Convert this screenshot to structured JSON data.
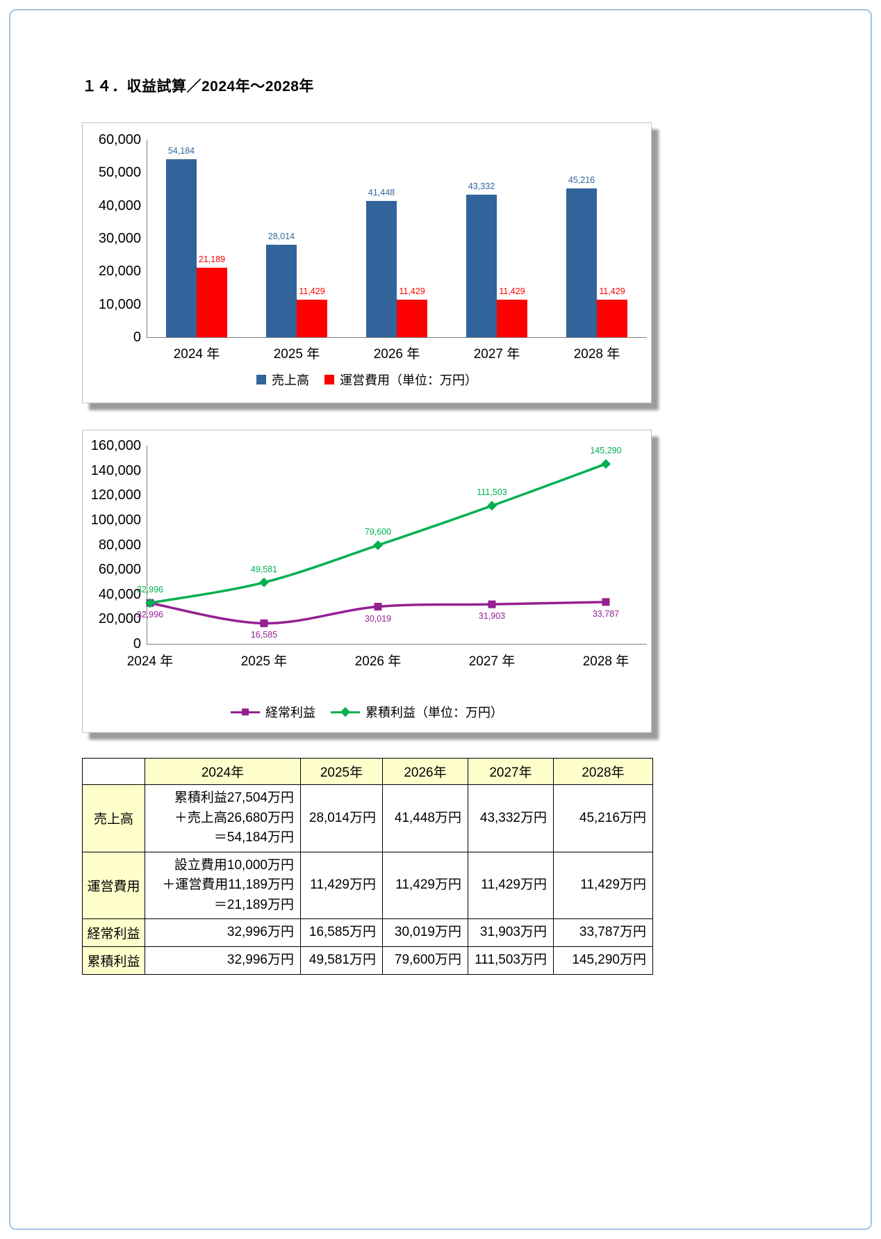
{
  "page": {
    "title": "１４．収益試算／2024年～2028年"
  },
  "colors": {
    "sales_bar": "#31649B",
    "expense_bar": "#FF0000",
    "ordinary_profit_line": "#942092",
    "cumulative_profit_line": "#00B050",
    "table_header_bg": "#FFFFCC",
    "page_border": "#A7C4DD"
  },
  "chart_data": [
    {
      "type": "bar",
      "categories": [
        "2024 年",
        "2025 年",
        "2026 年",
        "2027 年",
        "2028 年"
      ],
      "series": [
        {
          "name": "売上高",
          "color": "#31649B",
          "values": [
            54184,
            28014,
            41448,
            43332,
            45216
          ]
        },
        {
          "name": "運営費用（単位：万円）",
          "color": "#FF0000",
          "values": [
            21189,
            11429,
            11429,
            11429,
            11429
          ]
        }
      ],
      "ylim": [
        0,
        60000
      ],
      "ytick_step": 10000,
      "grid": false,
      "legend_position": "bottom"
    },
    {
      "type": "line",
      "categories": [
        "2024 年",
        "2025 年",
        "2026 年",
        "2027 年",
        "2028 年"
      ],
      "series": [
        {
          "name": "経常利益",
          "color": "#942092",
          "marker": "square",
          "values": [
            32996,
            16585,
            30019,
            31903,
            33787
          ]
        },
        {
          "name": "累積利益（単位：万円）",
          "color": "#00B050",
          "marker": "diamond",
          "values": [
            32996,
            49581,
            79600,
            111503,
            145290
          ]
        }
      ],
      "ylim": [
        0,
        160000
      ],
      "ytick_step": 20000,
      "grid": false,
      "legend_position": "bottom"
    }
  ],
  "table": {
    "header_row": [
      "",
      "2024年",
      "2025年",
      "2026年",
      "2027年",
      "2028年"
    ],
    "rows": [
      {
        "label": "売上高",
        "cells": [
          [
            "累積利益27,504万円",
            "＋売上高26,680万円",
            "＝54,184万円"
          ],
          [
            "28,014万円"
          ],
          [
            "41,448万円"
          ],
          [
            "43,332万円"
          ],
          [
            "45,216万円"
          ]
        ]
      },
      {
        "label": "運営費用",
        "cells": [
          [
            "設立費用10,000万円",
            "＋運営費用11,189万円",
            "＝21,189万円"
          ],
          [
            "11,429万円"
          ],
          [
            "11,429万円"
          ],
          [
            "11,429万円"
          ],
          [
            "11,429万円"
          ]
        ]
      },
      {
        "label": "経常利益",
        "cells": [
          [
            "32,996万円"
          ],
          [
            "16,585万円"
          ],
          [
            "30,019万円"
          ],
          [
            "31,903万円"
          ],
          [
            "33,787万円"
          ]
        ]
      },
      {
        "label": "累積利益",
        "cells": [
          [
            "32,996万円"
          ],
          [
            "49,581万円"
          ],
          [
            "79,600万円"
          ],
          [
            "111,503万円"
          ],
          [
            "145,290万円"
          ]
        ]
      }
    ]
  }
}
